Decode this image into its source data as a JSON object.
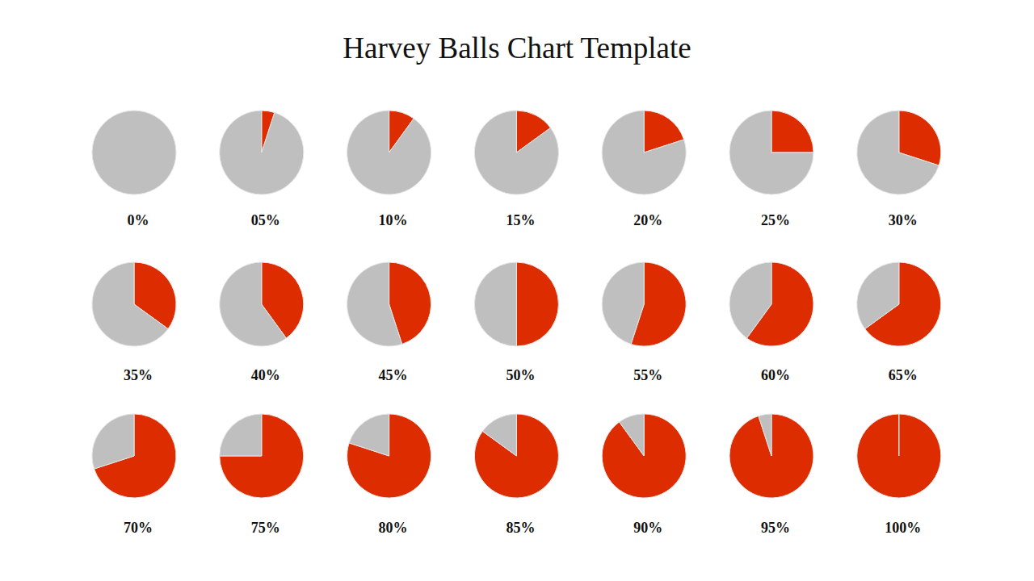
{
  "chart_data": {
    "type": "pie",
    "title": "Harvey Balls Chart Template",
    "values": [
      0,
      5,
      10,
      15,
      20,
      25,
      30,
      35,
      40,
      45,
      50,
      55,
      60,
      65,
      70,
      75,
      80,
      85,
      90,
      95,
      100
    ],
    "value_labels": [
      "0%",
      "05%",
      "10%",
      "15%",
      "20%",
      "25%",
      "30%",
      "35%",
      "40%",
      "45%",
      "50%",
      "55%",
      "60%",
      "65%",
      "70%",
      "75%",
      "80%",
      "85%",
      "90%",
      "95%",
      "100%"
    ],
    "color": "#dd2c00",
    "data_labels": true
  }
}
